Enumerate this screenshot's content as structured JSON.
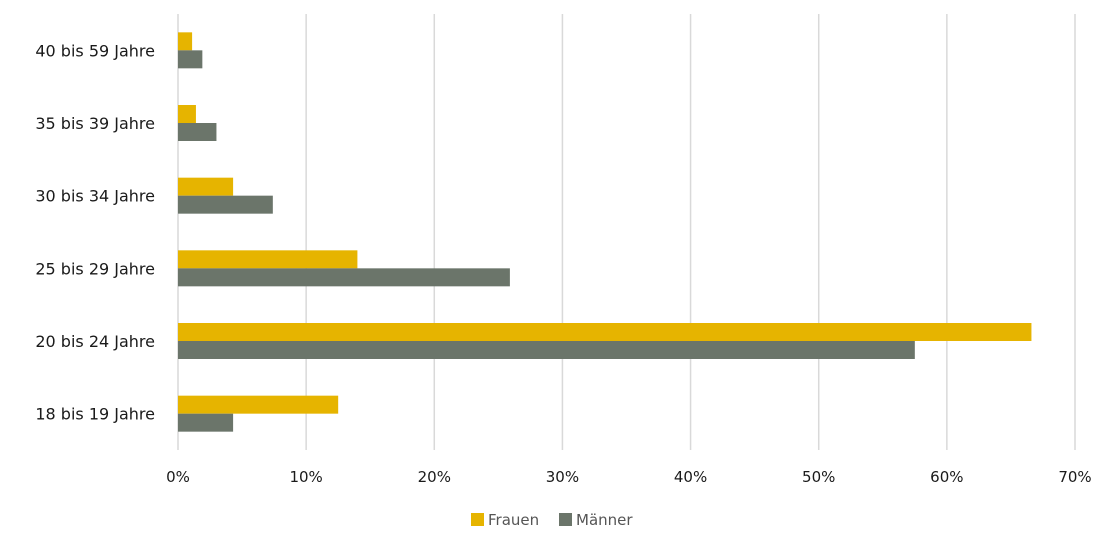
{
  "chart_data": {
    "type": "bar",
    "orientation": "horizontal",
    "categories": [
      "40 bis 59 Jahre",
      "35 bis 39 Jahre",
      "30 bis 34 Jahre",
      "25 bis 29 Jahre",
      "20 bis 24 Jahre",
      "18 bis 19 Jahre"
    ],
    "series": [
      {
        "name": "Frauen",
        "color": "#e6b400",
        "values": [
          1.1,
          1.4,
          4.3,
          14.0,
          66.6,
          12.5
        ]
      },
      {
        "name": "Männer",
        "color": "#6b756a",
        "values": [
          1.9,
          3.0,
          7.4,
          25.9,
          57.5,
          4.3
        ]
      }
    ],
    "xlim": [
      0,
      70
    ],
    "x_ticks": [
      0,
      10,
      20,
      30,
      40,
      50,
      60,
      70
    ],
    "x_tick_labels": [
      "0%",
      "10%",
      "20%",
      "30%",
      "40%",
      "50%",
      "60%",
      "70%"
    ],
    "grid": "vertical",
    "legend_position": "bottom",
    "title": "",
    "xlabel": "",
    "ylabel": ""
  }
}
